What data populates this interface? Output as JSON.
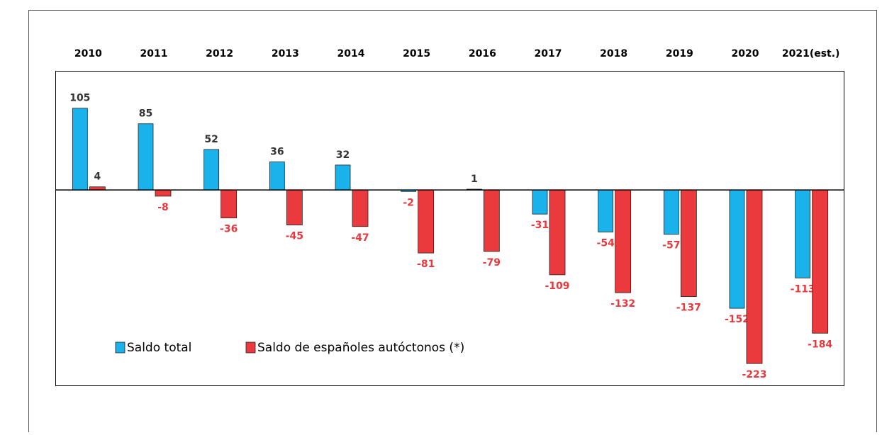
{
  "chart_data": {
    "type": "bar",
    "categories": [
      "2010",
      "2011",
      "2012",
      "2013",
      "2014",
      "2015",
      "2016",
      "2017",
      "2018",
      "2019",
      "2020",
      "2021(est.)"
    ],
    "series": [
      {
        "name": "Saldo total",
        "color": "#19b2ea",
        "values": [
          105,
          85,
          52,
          36,
          32,
          -2,
          1,
          -31,
          -54,
          -57,
          -152,
          -113
        ]
      },
      {
        "name": "Saldo de españoles autóctonos (*)",
        "color": "#eb3a3e",
        "values": [
          4,
          -8,
          -36,
          -45,
          -47,
          -81,
          -79,
          -109,
          -132,
          -137,
          -223,
          -184
        ]
      }
    ],
    "ylim": [
      -252,
      153
    ],
    "legend": "lower left"
  }
}
